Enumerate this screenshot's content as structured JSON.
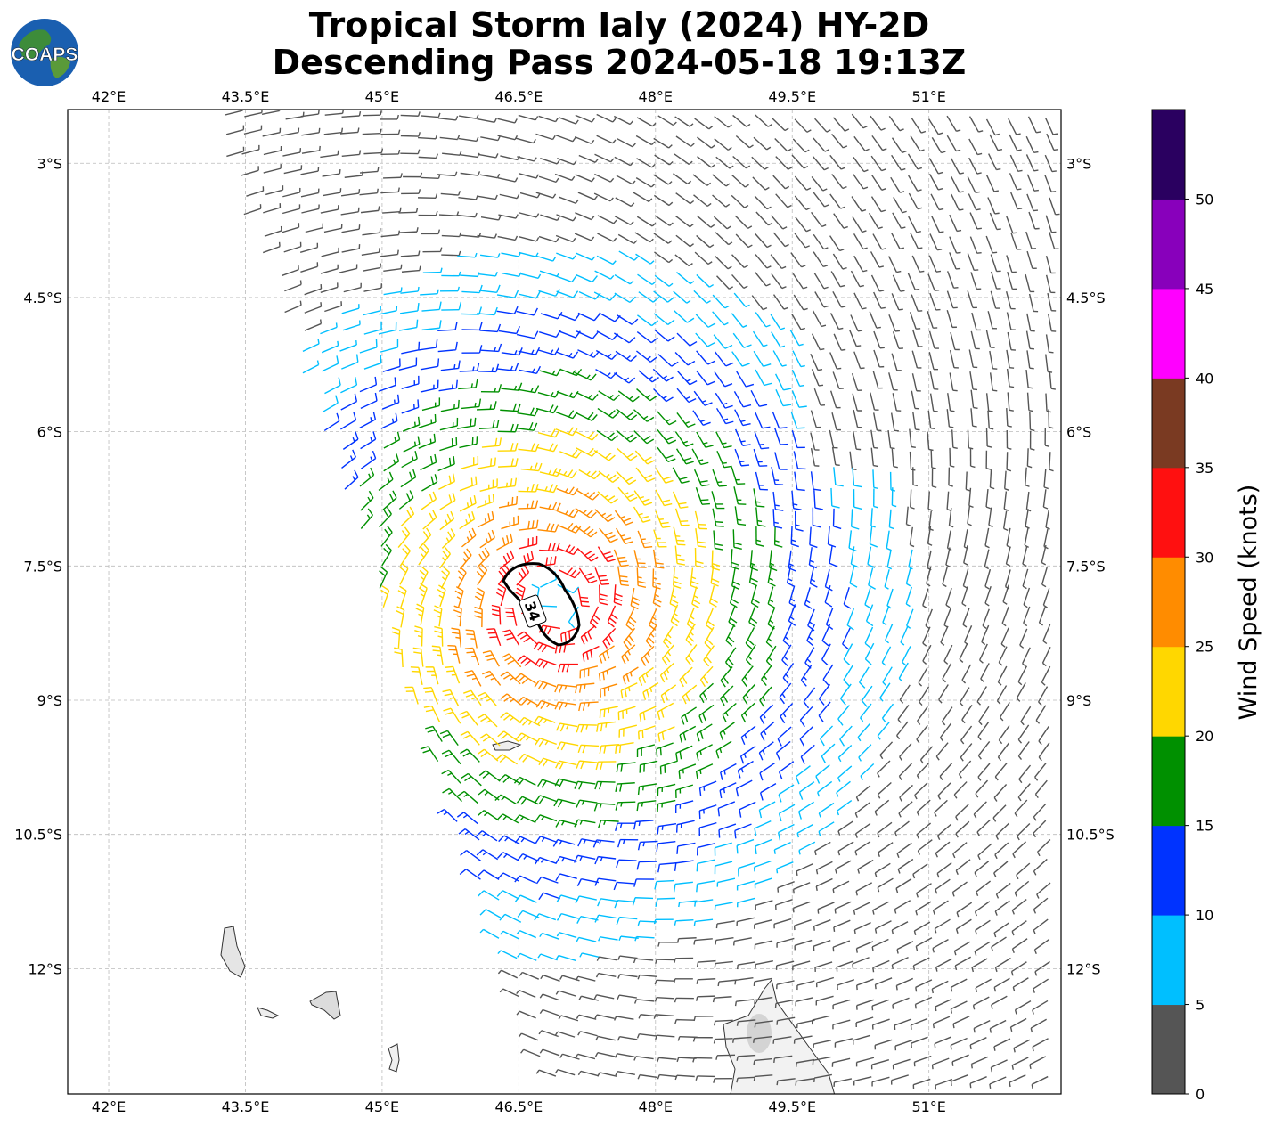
{
  "title": {
    "line1": "Tropical Storm Ialy (2024) HY-2D",
    "line2": "Descending Pass 2024-05-18 19:13Z"
  },
  "logo": {
    "text": "COAPS",
    "icon": "globe-logo-icon"
  },
  "map": {
    "lon_ticks": [
      "42°E",
      "43.5°E",
      "45°E",
      "46.5°E",
      "48°E",
      "49.5°E",
      "51°E"
    ],
    "lat_ticks": [
      "3°S",
      "4.5°S",
      "6°S",
      "7.5°S",
      "9°S",
      "10.5°S",
      "12°S"
    ],
    "lon_range": [
      41.55,
      52.45
    ],
    "lat_range": [
      -13.4,
      -2.4
    ],
    "grid": true,
    "storm_center": {
      "lon": 46.9,
      "lat": -7.9
    },
    "wind_radius_contour_label": "34",
    "land_features": [
      "Comoros",
      "Madagascar (north tip)"
    ]
  },
  "colorbar": {
    "label": "Wind Speed (knots)",
    "ticks": [
      "0",
      "5",
      "10",
      "15",
      "20",
      "25",
      "30",
      "35",
      "40",
      "45",
      "50"
    ],
    "colors": [
      "#555555",
      "#00bfff",
      "#0033ff",
      "#009000",
      "#ffd700",
      "#ff8c00",
      "#ff1010",
      "#7a3a22",
      "#ff00ff",
      "#8800bb",
      "#2a0060"
    ]
  }
}
